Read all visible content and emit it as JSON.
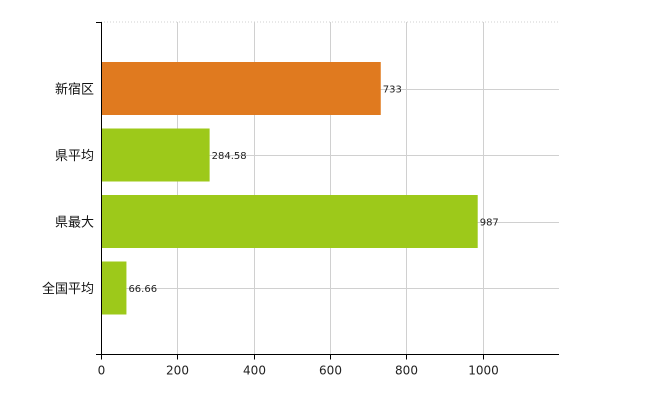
{
  "chart_data": {
    "type": "bar",
    "orientation": "horizontal",
    "categories": [
      "新宿区",
      "県平均",
      "県最大",
      "全国平均"
    ],
    "values": [
      733,
      284.58,
      987,
      66.66
    ],
    "value_labels": [
      "733",
      "284.58",
      "987",
      "66.66"
    ],
    "bar_colors": [
      "#E07A1F",
      "#9DC91A",
      "#9DC91A",
      "#9DC91A"
    ],
    "title": "",
    "xlabel": "",
    "ylabel": "",
    "xlim": [
      0,
      1200
    ],
    "xticks": [
      0,
      200,
      400,
      600,
      800,
      1000
    ],
    "xtick_labels": [
      "0",
      "200",
      "400",
      "600",
      "800",
      "1000"
    ],
    "grid": true,
    "gridline_color": "#D0D0D0",
    "axis_color": "#000000"
  }
}
